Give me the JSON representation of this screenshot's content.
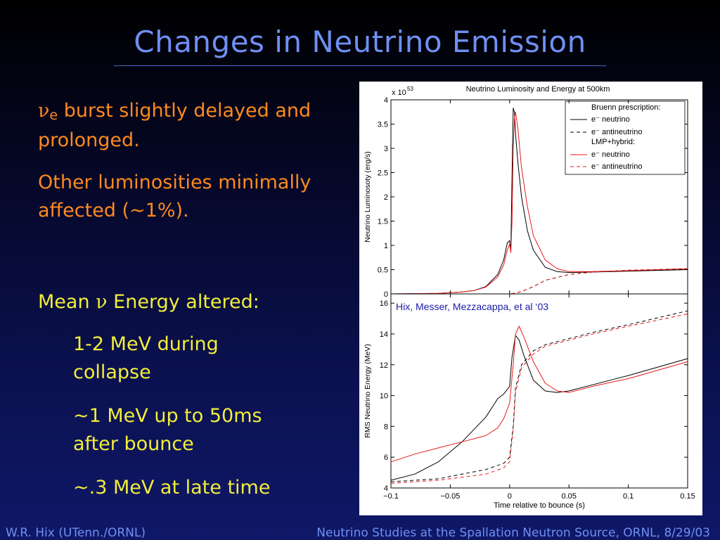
{
  "slide": {
    "title": "Changes in Neutrino Emission",
    "bullet1": {
      "symbol": "ν",
      "subscript": "e",
      "text": " burst slightly delayed and prolonged."
    },
    "bullet2": "Other luminosities minimally affected (~1%).",
    "bullet3": {
      "prefix": "Mean ",
      "symbol": "ν",
      "suffix": " Energy altered:"
    },
    "sub1": "1-2 MeV during collapse",
    "sub2": "~1 MeV up to 50ms after bounce",
    "sub3": "~.3 MeV at late time"
  },
  "footer": {
    "left": "W.R. Hix (UTenn./ORNL)",
    "right": "Neutrino Studies at the Spallation Neutron Source, ORNL, 8/29/03"
  },
  "colors": {
    "title": "#6f8ff2",
    "orange_text": "#ff8a1f",
    "yellow_text": "#f2ee3a",
    "prescription_lmp": "#e8191c",
    "prescription_bruenn": "#000000"
  },
  "chart_data": [
    {
      "type": "line",
      "title": "Neutrino Luminosity and Energy at 500km",
      "ylabel": "Neutrino Luminosoty (erg/s)",
      "y_multiplier": "x 10",
      "y_multiplier_exp": "53",
      "xlim": [
        -0.1,
        0.15
      ],
      "ylim": [
        0,
        4
      ],
      "yticks": [
        "0",
        "0.5",
        "1",
        "1.5",
        "2",
        "2.5",
        "3",
        "3.5",
        "4"
      ],
      "legend": {
        "position": "top-right",
        "headers": [
          "Bruenn prescription:",
          "LMP+hybrid:"
        ],
        "entries": [
          "e⁻ neutrino",
          "e⁻ antineutrino",
          "e⁻ neutrino",
          "e⁻ antineutrino"
        ]
      },
      "series": [
        {
          "name": "e⁻ neutrino",
          "group": "Bruenn prescription",
          "color": "#000000",
          "dash": false,
          "x": [
            -0.1,
            -0.06,
            -0.04,
            -0.03,
            -0.02,
            -0.01,
            -0.005,
            -0.002,
            0.0,
            0.001,
            0.002,
            0.003,
            0.004,
            0.005,
            0.007,
            0.01,
            0.015,
            0.02,
            0.03,
            0.04,
            0.05,
            0.07,
            0.1,
            0.15
          ],
          "y": [
            0,
            0.01,
            0.04,
            0.07,
            0.15,
            0.4,
            0.7,
            1.05,
            1.1,
            0.9,
            2.4,
            3.83,
            3.75,
            3.3,
            2.7,
            2.0,
            1.3,
            0.9,
            0.55,
            0.46,
            0.44,
            0.45,
            0.47,
            0.5
          ]
        },
        {
          "name": "e⁻ antineutrino",
          "group": "Bruenn prescription",
          "color": "#000000",
          "dash": true,
          "x": [
            -0.1,
            -0.01,
            0.0,
            0.003,
            0.01,
            0.02,
            0.03,
            0.05,
            0.07,
            0.1,
            0.15
          ],
          "y": [
            0,
            0,
            0,
            0.01,
            0.05,
            0.15,
            0.28,
            0.4,
            0.45,
            0.48,
            0.51
          ]
        },
        {
          "name": "e⁻ neutrino",
          "group": "LMP+hybrid",
          "color": "#e8191c",
          "dash": false,
          "x": [
            -0.1,
            -0.06,
            -0.04,
            -0.03,
            -0.02,
            -0.01,
            -0.005,
            -0.002,
            0.0,
            0.001,
            0.002,
            0.003,
            0.004,
            0.005,
            0.007,
            0.01,
            0.015,
            0.02,
            0.03,
            0.04,
            0.05,
            0.07,
            0.1,
            0.15
          ],
          "y": [
            0,
            0.01,
            0.04,
            0.07,
            0.14,
            0.35,
            0.6,
            0.9,
            1.02,
            0.85,
            1.5,
            3.0,
            3.6,
            3.75,
            3.4,
            2.6,
            1.8,
            1.2,
            0.7,
            0.52,
            0.46,
            0.46,
            0.48,
            0.52
          ]
        },
        {
          "name": "e⁻ antineutrino",
          "group": "LMP+hybrid",
          "color": "#e8191c",
          "dash": true,
          "x": [
            -0.1,
            -0.01,
            0.0,
            0.003,
            0.01,
            0.02,
            0.03,
            0.05,
            0.07,
            0.1,
            0.15
          ],
          "y": [
            0,
            0,
            0,
            0.01,
            0.05,
            0.15,
            0.28,
            0.4,
            0.45,
            0.49,
            0.52
          ]
        }
      ]
    },
    {
      "type": "line",
      "ylabel": "RMS Neutrino Energy (MeV)",
      "xlabel": "Time relative to bounce (s)",
      "xlim": [
        -0.1,
        0.15
      ],
      "ylim": [
        4,
        16.6
      ],
      "xticks": [
        "−0.1",
        "−0.05",
        "0",
        "0.05",
        "0.1",
        "0.15"
      ],
      "yticks": [
        "4",
        "6",
        "8",
        "10",
        "12",
        "14",
        "16"
      ],
      "annotation": "Hix, Messer, Mezzacappa, et al ‘03",
      "series": [
        {
          "name": "e⁻ neutrino",
          "group": "Bruenn prescription",
          "color": "#000000",
          "dash": false,
          "x": [
            -0.1,
            -0.08,
            -0.06,
            -0.04,
            -0.02,
            -0.01,
            -0.005,
            0.0,
            0.002,
            0.005,
            0.008,
            0.012,
            0.02,
            0.03,
            0.04,
            0.05,
            0.07,
            0.1,
            0.15
          ],
          "y": [
            4.5,
            4.9,
            5.7,
            7.0,
            8.6,
            9.8,
            10.1,
            10.6,
            12.5,
            13.9,
            13.6,
            12.6,
            11.0,
            10.3,
            10.2,
            10.3,
            10.7,
            11.3,
            12.4
          ]
        },
        {
          "name": "e⁻ antineutrino",
          "group": "Bruenn prescription",
          "color": "#000000",
          "dash": true,
          "x": [
            -0.1,
            -0.06,
            -0.02,
            -0.005,
            0.0,
            0.003,
            0.005,
            0.01,
            0.02,
            0.03,
            0.05,
            0.07,
            0.1,
            0.15
          ],
          "y": [
            4.4,
            4.6,
            5.2,
            5.6,
            6.0,
            8.0,
            10.5,
            12.0,
            12.9,
            13.3,
            13.7,
            14.1,
            14.6,
            15.5
          ]
        },
        {
          "name": "e⁻ neutrino",
          "group": "LMP+hybrid",
          "color": "#e8191c",
          "dash": false,
          "x": [
            -0.1,
            -0.08,
            -0.06,
            -0.04,
            -0.02,
            -0.01,
            -0.005,
            0.0,
            0.003,
            0.005,
            0.008,
            0.012,
            0.02,
            0.03,
            0.04,
            0.05,
            0.07,
            0.1,
            0.15
          ],
          "y": [
            5.7,
            6.2,
            6.6,
            7.0,
            7.4,
            7.9,
            8.5,
            9.5,
            12.0,
            14.0,
            14.5,
            13.8,
            12.2,
            10.8,
            10.3,
            10.2,
            10.6,
            11.1,
            12.2
          ]
        },
        {
          "name": "e⁻ antineutrino",
          "group": "LMP+hybrid",
          "color": "#e8191c",
          "dash": true,
          "x": [
            -0.1,
            -0.06,
            -0.02,
            -0.005,
            0.0,
            0.003,
            0.005,
            0.01,
            0.02,
            0.03,
            0.05,
            0.07,
            0.1,
            0.15
          ],
          "y": [
            4.3,
            4.5,
            4.9,
            5.3,
            5.7,
            7.8,
            10.2,
            11.8,
            12.7,
            13.2,
            13.6,
            14.0,
            14.5,
            15.3
          ]
        }
      ]
    }
  ]
}
